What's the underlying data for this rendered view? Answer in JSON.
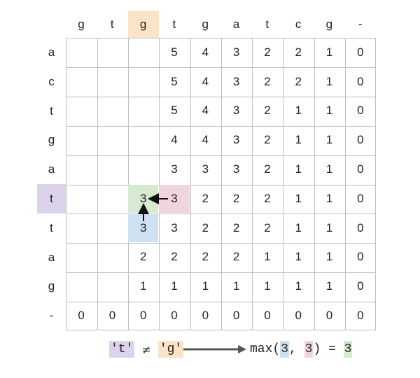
{
  "columns": [
    "g",
    "t",
    "g",
    "t",
    "g",
    "a",
    "t",
    "c",
    "g",
    "-"
  ],
  "rows": [
    "a",
    "c",
    "t",
    "g",
    "a",
    "t",
    "t",
    "a",
    "g",
    "-"
  ],
  "matrix": [
    [
      "",
      "",
      "",
      "5",
      "4",
      "3",
      "2",
      "2",
      "1",
      "0"
    ],
    [
      "",
      "",
      "",
      "5",
      "4",
      "3",
      "2",
      "2",
      "1",
      "0"
    ],
    [
      "",
      "",
      "",
      "5",
      "4",
      "3",
      "2",
      "1",
      "1",
      "0"
    ],
    [
      "",
      "",
      "",
      "4",
      "4",
      "3",
      "2",
      "1",
      "1",
      "0"
    ],
    [
      "",
      "",
      "",
      "3",
      "3",
      "3",
      "2",
      "1",
      "1",
      "0"
    ],
    [
      "",
      "",
      "3",
      "3",
      "2",
      "2",
      "2",
      "1",
      "1",
      "0"
    ],
    [
      "",
      "",
      "3",
      "3",
      "2",
      "2",
      "2",
      "1",
      "1",
      "0"
    ],
    [
      "",
      "",
      "2",
      "2",
      "2",
      "2",
      "1",
      "1",
      "1",
      "0"
    ],
    [
      "",
      "",
      "1",
      "1",
      "1",
      "1",
      "1",
      "1",
      "1",
      "0"
    ],
    [
      "0",
      "0",
      "0",
      "0",
      "0",
      "0",
      "0",
      "0",
      "0",
      "0"
    ]
  ],
  "highlights": {
    "column_header_index": 2,
    "row_header_index": 5,
    "current_cell": {
      "row": 5,
      "col": 2
    },
    "right_neighbor": {
      "row": 5,
      "col": 3
    },
    "below_neighbor": {
      "row": 6,
      "col": 2
    }
  },
  "colors": {
    "orange": "#fbe3c8",
    "purple": "#dcd3eb",
    "green": "#d6ead0",
    "pink": "#f0d4de",
    "blue": "#cfe0f2",
    "grid": "#bfbfbf",
    "arrow": "#555555"
  },
  "legend": {
    "left_char": "'t'",
    "neq": "≠",
    "right_char": "'g'",
    "max_open": "max(",
    "max_a": "3",
    "comma": ", ",
    "max_b": "3",
    "max_close": ")",
    "equals": " = ",
    "result": "3"
  }
}
